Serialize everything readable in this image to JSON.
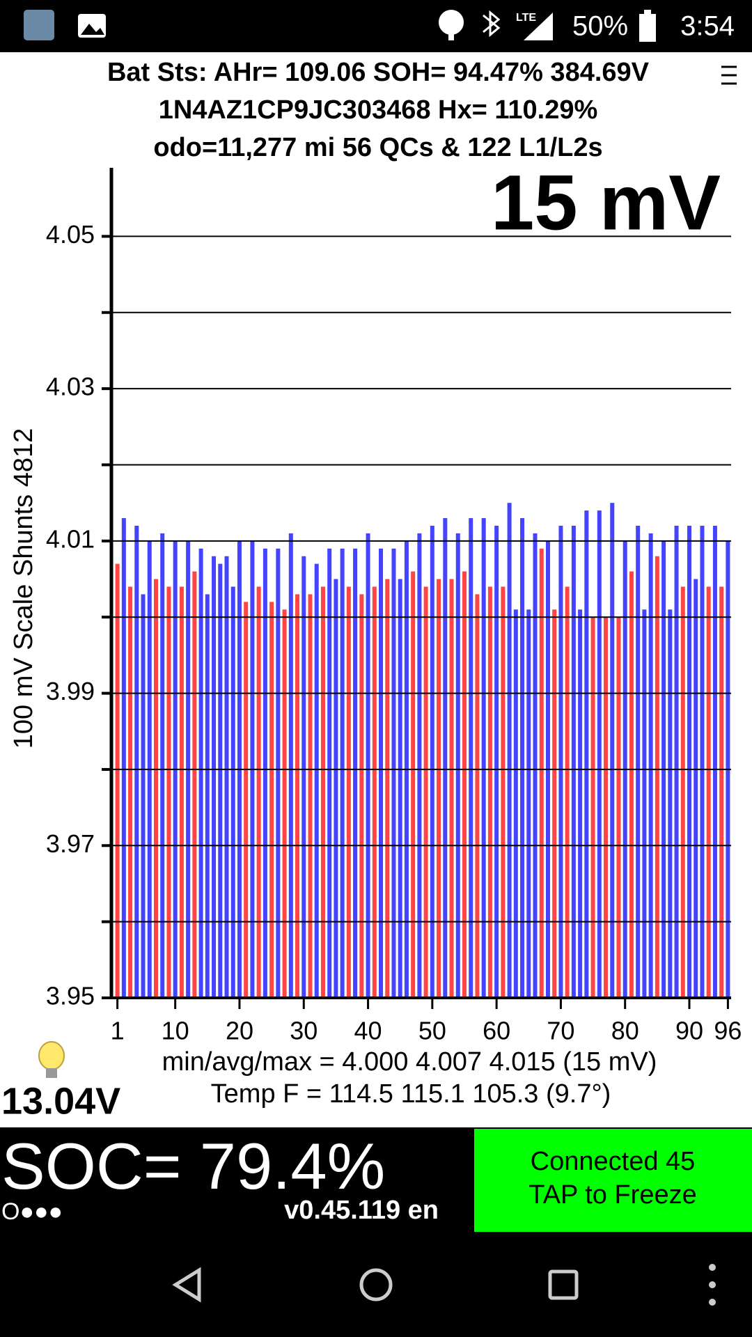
{
  "status_bar": {
    "network": "LTE",
    "battery": "50%",
    "time": "3:54"
  },
  "header": {
    "line1": "Bat Sts: AHr= 109.06 SOH= 94.47% 384.69V",
    "line2": "1N4AZ1CP9JC303468   Hx= 110.29%",
    "line3": "odo=11,277 mi 56 QCs & 122 L1/L2s"
  },
  "chart_data": {
    "type": "bar",
    "annotation": "15 mV",
    "y_label": "100 mV Scale   Shunts 4812",
    "categories": [
      1,
      null,
      null,
      null,
      null,
      null,
      null,
      null,
      null,
      10,
      null,
      null,
      null,
      null,
      null,
      null,
      null,
      null,
      null,
      20,
      null,
      null,
      null,
      null,
      null,
      null,
      null,
      null,
      null,
      30,
      null,
      null,
      null,
      null,
      null,
      null,
      null,
      null,
      null,
      40,
      null,
      null,
      null,
      null,
      null,
      null,
      null,
      null,
      null,
      50,
      null,
      null,
      null,
      null,
      null,
      null,
      null,
      null,
      null,
      60,
      null,
      null,
      null,
      null,
      null,
      null,
      null,
      null,
      null,
      70,
      null,
      null,
      null,
      null,
      null,
      null,
      null,
      null,
      null,
      80,
      null,
      null,
      null,
      null,
      null,
      null,
      null,
      null,
      null,
      90,
      null,
      null,
      null,
      null,
      null,
      96
    ],
    "values": [
      4.007,
      4.013,
      4.004,
      4.012,
      4.003,
      4.01,
      4.005,
      4.011,
      4.004,
      4.01,
      4.004,
      4.01,
      4.006,
      4.009,
      4.003,
      4.008,
      4.007,
      4.008,
      4.004,
      4.01,
      4.002,
      4.01,
      4.004,
      4.009,
      4.002,
      4.009,
      4.001,
      4.011,
      4.003,
      4.008,
      4.003,
      4.007,
      4.004,
      4.009,
      4.005,
      4.009,
      4.004,
      4.009,
      4.003,
      4.011,
      4.004,
      4.009,
      4.005,
      4.009,
      4.005,
      4.01,
      4.006,
      4.011,
      4.004,
      4.012,
      4.005,
      4.013,
      4.005,
      4.011,
      4.006,
      4.013,
      4.003,
      4.013,
      4.004,
      4.012,
      4.004,
      4.015,
      4.001,
      4.013,
      4.001,
      4.011,
      4.009,
      4.01,
      4.001,
      4.012,
      4.004,
      4.012,
      4.001,
      4.014,
      4.0,
      4.014,
      4.0,
      4.015,
      4.0,
      4.01,
      4.006,
      4.012,
      4.001,
      4.011,
      4.008,
      4.01,
      4.001,
      4.012,
      4.004,
      4.012,
      4.005,
      4.012,
      4.004,
      4.012,
      4.004,
      4.01
    ],
    "colors": [
      "#ff4444",
      "#4444ff",
      "#ff4444",
      "#4444ff",
      "#4444ff",
      "#4444ff",
      "#ff4444",
      "#4444ff",
      "#ff4444",
      "#4444ff",
      "#ff4444",
      "#4444ff",
      "#ff4444",
      "#4444ff",
      "#4444ff",
      "#4444ff",
      "#4444ff",
      "#4444ff",
      "#4444ff",
      "#4444ff",
      "#ff4444",
      "#4444ff",
      "#ff4444",
      "#4444ff",
      "#ff4444",
      "#4444ff",
      "#ff4444",
      "#4444ff",
      "#ff4444",
      "#4444ff",
      "#ff4444",
      "#4444ff",
      "#ff4444",
      "#4444ff",
      "#4444ff",
      "#4444ff",
      "#ff4444",
      "#4444ff",
      "#ff4444",
      "#4444ff",
      "#ff4444",
      "#4444ff",
      "#ff4444",
      "#4444ff",
      "#4444ff",
      "#4444ff",
      "#ff4444",
      "#4444ff",
      "#ff4444",
      "#4444ff",
      "#ff4444",
      "#4444ff",
      "#ff4444",
      "#4444ff",
      "#ff4444",
      "#4444ff",
      "#ff4444",
      "#4444ff",
      "#ff4444",
      "#4444ff",
      "#ff4444",
      "#4444ff",
      "#4444ff",
      "#4444ff",
      "#4444ff",
      "#4444ff",
      "#ff4444",
      "#4444ff",
      "#ff4444",
      "#4444ff",
      "#ff4444",
      "#4444ff",
      "#4444ff",
      "#4444ff",
      "#ff4444",
      "#4444ff",
      "#ff4444",
      "#4444ff",
      "#ff4444",
      "#4444ff",
      "#ff4444",
      "#4444ff",
      "#4444ff",
      "#4444ff",
      "#ff4444",
      "#4444ff",
      "#4444ff",
      "#4444ff",
      "#ff4444",
      "#4444ff",
      "#4444ff",
      "#4444ff",
      "#ff4444",
      "#4444ff",
      "#ff4444",
      "#4444ff"
    ],
    "ylim": [
      3.95,
      4.059
    ],
    "yticks": [
      3.95,
      3.97,
      3.99,
      4.01,
      4.03,
      4.05
    ],
    "minor_yticks": [
      3.96,
      3.98,
      4.0,
      4.02,
      4.04
    ],
    "grid": true
  },
  "footer": {
    "stats_line1": "min/avg/max = 4.000 4.007 4.015  (15 mV)",
    "stats_line2": "Temp F = 114.5  115.1  105.3  (9.7°)",
    "voltage": "13.04V",
    "soc": "SOC= 79.4%",
    "dots": "O●●●",
    "version": "v0.45.119 en",
    "button_line1": "Connected 45",
    "button_line2": "TAP to Freeze"
  }
}
